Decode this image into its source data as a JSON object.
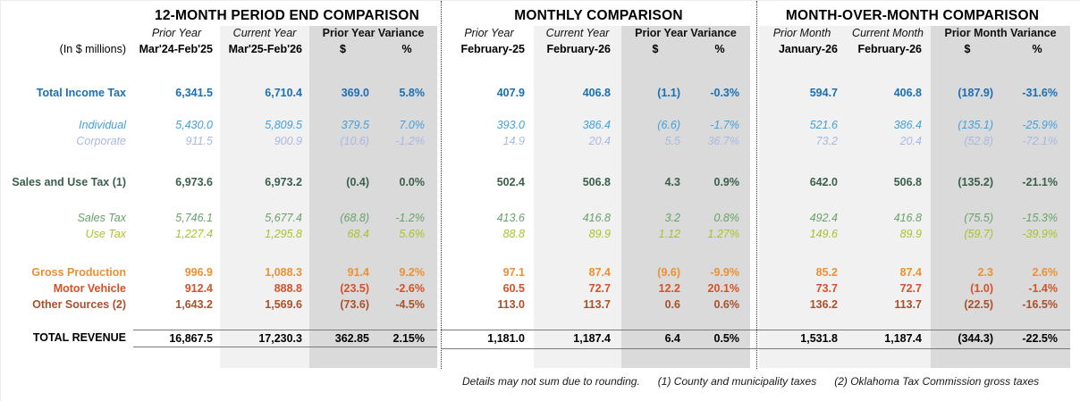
{
  "units_label": "(In $ millions)",
  "sections": [
    {
      "title": "12-MONTH PERIOD END COMPARISON",
      "prior_label": "Prior Year",
      "current_label": "Current Year",
      "variance_label": "Prior Year Variance",
      "prior_period": "Mar'24-Feb'25",
      "current_period": "Mar'25-Feb'26",
      "dollar_symbol": "$",
      "percent_symbol": "%"
    },
    {
      "title": "MONTHLY COMPARISON",
      "prior_label": "Prior Year",
      "current_label": "Current Year",
      "variance_label": "Prior Year Variance",
      "prior_period": "February-25",
      "current_period": "February-26",
      "dollar_symbol": "$",
      "percent_symbol": "%"
    },
    {
      "title": "MONTH-OVER-MONTH COMPARISON",
      "prior_label": "Prior Month",
      "current_label": "Current Month",
      "variance_label": "Prior Month Variance",
      "prior_period": "January-26",
      "current_period": "February-26",
      "dollar_symbol": "$",
      "percent_symbol": "%"
    }
  ],
  "rows": [
    {
      "key": "total-income-tax",
      "label": "Total Income Tax",
      "style": "income-total",
      "bold": true,
      "italic": false,
      "total": false,
      "gap": 28,
      "values": [
        [
          "6,341.5",
          "6,710.4",
          "369.0",
          "5.8%"
        ],
        [
          "407.9",
          "406.8",
          "(1.1)",
          "-0.3%"
        ],
        [
          "594.7",
          "406.8",
          "(187.9)",
          "-31.6%"
        ]
      ]
    },
    {
      "key": "individual",
      "label": "Individual",
      "style": "individual",
      "bold": false,
      "italic": true,
      "total": false,
      "gap": 18,
      "values": [
        [
          "5,430.0",
          "5,809.5",
          "379.5",
          "7.0%"
        ],
        [
          "393.0",
          "386.4",
          "(6.6)",
          "-1.7%"
        ],
        [
          "521.6",
          "386.4",
          "(135.1)",
          "-25.9%"
        ]
      ]
    },
    {
      "key": "corporate",
      "label": "Corporate",
      "style": "corporate",
      "bold": false,
      "italic": true,
      "total": false,
      "gap": 0,
      "values": [
        [
          "911.5",
          "900.9",
          "(10.6)",
          "-1.2%"
        ],
        [
          "14.9",
          "20.4",
          "5.5",
          "36.7%"
        ],
        [
          "73.2",
          "20.4",
          "(52.8)",
          "-72.1%"
        ]
      ]
    },
    {
      "key": "sales-and-use-tax",
      "label": "Sales and Use Tax (1)",
      "style": "salesuse-total",
      "bold": true,
      "italic": false,
      "total": false,
      "gap": 28,
      "values": [
        [
          "6,973.6",
          "6,973.2",
          "(0.4)",
          "0.0%"
        ],
        [
          "502.4",
          "506.8",
          "4.3",
          "0.9%"
        ],
        [
          "642.0",
          "506.8",
          "(135.2)",
          "-21.1%"
        ]
      ]
    },
    {
      "key": "sales-tax",
      "label": "Sales Tax",
      "style": "sales-tax",
      "bold": false,
      "italic": true,
      "total": false,
      "gap": 22,
      "values": [
        [
          "5,746.1",
          "5,677.4",
          "(68.8)",
          "-1.2%"
        ],
        [
          "413.6",
          "416.8",
          "3.2",
          "0.8%"
        ],
        [
          "492.4",
          "416.8",
          "(75.5)",
          "-15.3%"
        ]
      ]
    },
    {
      "key": "use-tax",
      "label": "Use Tax",
      "style": "use-tax",
      "bold": false,
      "italic": true,
      "total": false,
      "gap": 0,
      "values": [
        [
          "1,227.4",
          "1,295.8",
          "68.4",
          "5.6%"
        ],
        [
          "88.8",
          "89.9",
          "1.12",
          "1.27%"
        ],
        [
          "149.6",
          "89.9",
          "(59.7)",
          "-39.9%"
        ]
      ]
    },
    {
      "key": "gross-production",
      "label": "Gross Production",
      "style": "gross-production",
      "bold": true,
      "italic": false,
      "total": false,
      "gap": 25,
      "values": [
        [
          "996.9",
          "1,088.3",
          "91.4",
          "9.2%"
        ],
        [
          "97.1",
          "87.4",
          "(9.6)",
          "-9.9%"
        ],
        [
          "85.2",
          "87.4",
          "2.3",
          "2.6%"
        ]
      ]
    },
    {
      "key": "motor-vehicle",
      "label": "Motor Vehicle",
      "style": "motor-vehicle",
      "bold": true,
      "italic": false,
      "total": false,
      "gap": 0,
      "values": [
        [
          "912.4",
          "888.8",
          "(23.5)",
          "-2.6%"
        ],
        [
          "60.5",
          "72.7",
          "12.2",
          "20.1%"
        ],
        [
          "73.7",
          "72.7",
          "(1.0)",
          "-1.4%"
        ]
      ]
    },
    {
      "key": "other-sources",
      "label": "Other Sources (2)",
      "style": "other-sources",
      "bold": true,
      "italic": false,
      "total": false,
      "gap": 0,
      "values": [
        [
          "1,643.2",
          "1,569.6",
          "(73.6)",
          "-4.5%"
        ],
        [
          "113.0",
          "113.7",
          "0.6",
          "0.6%"
        ],
        [
          "136.2",
          "113.7",
          "(22.5)",
          "-16.5%"
        ]
      ]
    },
    {
      "key": "total-revenue",
      "label": "TOTAL REVENUE",
      "style": "total-revenue",
      "bold": true,
      "italic": false,
      "total": true,
      "gap": 19,
      "values": [
        [
          "16,867.5",
          "17,230.3",
          "362.85",
          "2.15%"
        ],
        [
          "1,181.0",
          "1,187.4",
          "6.4",
          "0.5%"
        ],
        [
          "1,531.8",
          "1,187.4",
          "(344.3)",
          "-22.5%"
        ]
      ]
    }
  ],
  "footer": {
    "note_rounding": "Details may not sum due to rounding.",
    "note_1": "(1) County and municipality taxes",
    "note_2": "(2) Oklahoma Tax Commission gross taxes"
  },
  "colors": {
    "income_total": "#1B6FB5",
    "individual": "#3FA0DB",
    "corporate": "#A9B7E3",
    "sales_use_total": "#3A5F4B",
    "sales_tax": "#69A06B",
    "use_tax": "#A6C22F",
    "gross_production": "#EC9033",
    "motor_vehicle": "#D75128",
    "other_sources": "#A8512D",
    "shade_light": "#F1F1F1",
    "shade_dark": "#DADADA"
  }
}
